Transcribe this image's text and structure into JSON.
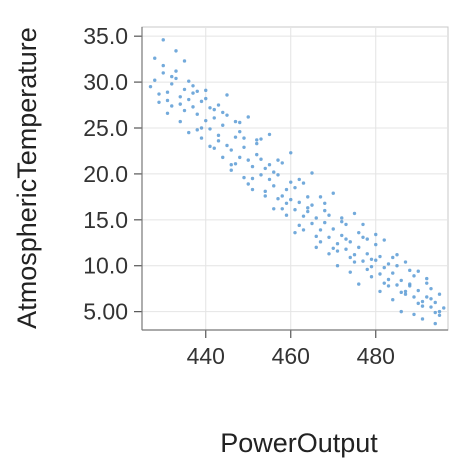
{
  "chart_data": {
    "type": "scatter",
    "title": "",
    "xlabel": "PowerOutput",
    "ylabel": "AtmosphericTemperature",
    "xlim": [
      425,
      497
    ],
    "ylim": [
      3.0,
      36.0
    ],
    "xticks": [
      440,
      460,
      480
    ],
    "xtick_labels": [
      "440",
      "460",
      "480"
    ],
    "yticks": [
      5.0,
      10.0,
      15.0,
      20.0,
      25.0,
      30.0,
      35.0
    ],
    "ytick_labels": [
      "5.00",
      "10.0",
      "15.0",
      "20.0",
      "25.0",
      "30.0",
      "35.0"
    ],
    "grid": true,
    "legend": "none",
    "point_color": "#5b9bd5",
    "series": [
      {
        "x": [
          427,
          428,
          429,
          430,
          431,
          432,
          433,
          434,
          435,
          436,
          437,
          438,
          439,
          440,
          441,
          442,
          443,
          444,
          445,
          446,
          447,
          448,
          449,
          450,
          451,
          452,
          453,
          454,
          455,
          456,
          457,
          458,
          459,
          460,
          461,
          462,
          463,
          464,
          465,
          466,
          467,
          468,
          469,
          470,
          471,
          472,
          473,
          474,
          475,
          476,
          477,
          478,
          479,
          480,
          481,
          482,
          483,
          484,
          485,
          486,
          487,
          488,
          489,
          490,
          491,
          492,
          493,
          494,
          495,
          496,
          429,
          431,
          433,
          435,
          437,
          439,
          441,
          443,
          445,
          447,
          449,
          451,
          453,
          455,
          457,
          459,
          461,
          463,
          465,
          467,
          469,
          471,
          473,
          475,
          477,
          479,
          481,
          483,
          485,
          487,
          489,
          491,
          493,
          495,
          430,
          432,
          434,
          436,
          438,
          440,
          442,
          444,
          446,
          448,
          450,
          452,
          454,
          456,
          458,
          460,
          462,
          464,
          466,
          468,
          470,
          472,
          474,
          476,
          478,
          480,
          482,
          484,
          486,
          488,
          490,
          492,
          494,
          428,
          433,
          438,
          443,
          448,
          453,
          458,
          463,
          468,
          473,
          478,
          483,
          488,
          493,
          431,
          436,
          441,
          446,
          451,
          456,
          461,
          466,
          471,
          476,
          481,
          486,
          491,
          434,
          439,
          444,
          449,
          454,
          459,
          464,
          469,
          474,
          479,
          484,
          489,
          494,
          432,
          437,
          442,
          447,
          452,
          457,
          462,
          467,
          472,
          477,
          482,
          487,
          492,
          430,
          440,
          450,
          460,
          470,
          480,
          490,
          435,
          445,
          455,
          465,
          475,
          485,
          495
        ],
        "y": [
          29.5,
          30.2,
          28.7,
          31.0,
          28.9,
          29.8,
          30.4,
          27.6,
          29.2,
          28.1,
          27.3,
          26.5,
          27.9,
          25.8,
          24.9,
          26.1,
          24.2,
          25.3,
          23.1,
          22.6,
          24.0,
          21.8,
          22.9,
          21.5,
          20.8,
          22.1,
          19.9,
          20.6,
          19.4,
          18.7,
          19.9,
          17.6,
          18.3,
          17.2,
          16.1,
          16.9,
          15.4,
          16.3,
          14.6,
          15.2,
          13.9,
          14.7,
          13.1,
          14.0,
          12.4,
          13.3,
          11.8,
          12.6,
          11.2,
          12.0,
          10.5,
          11.3,
          9.9,
          10.6,
          9.1,
          9.8,
          8.5,
          9.2,
          7.9,
          8.4,
          7.2,
          7.8,
          6.6,
          7.3,
          6.1,
          6.6,
          5.5,
          6.0,
          5.0,
          5.4,
          27.8,
          28.0,
          31.2,
          26.9,
          29.6,
          25.0,
          27.2,
          23.6,
          26.4,
          21.1,
          23.9,
          19.5,
          21.6,
          21.0,
          17.3,
          16.8,
          18.5,
          13.9,
          16.6,
          12.6,
          15.5,
          11.6,
          12.9,
          10.4,
          13.1,
          8.8,
          11.0,
          7.8,
          10.0,
          6.9,
          8.9,
          5.6,
          7.5,
          4.6,
          31.8,
          27.4,
          28.4,
          30.1,
          24.8,
          28.2,
          22.8,
          26.7,
          20.4,
          24.6,
          18.9,
          23.3,
          18.1,
          20.2,
          16.2,
          19.1,
          14.4,
          17.5,
          13.2,
          16.0,
          11.9,
          14.8,
          10.9,
          13.6,
          9.6,
          12.3,
          8.1,
          10.9,
          7.1,
          9.5,
          5.9,
          8.1,
          4.9,
          32.6,
          33.4,
          29.0,
          27.5,
          25.6,
          23.8,
          21.2,
          19.0,
          16.8,
          14.5,
          12.9,
          10.2,
          8.0,
          6.4,
          26.6,
          24.5,
          23.0,
          21.0,
          18.3,
          16.2,
          13.6,
          12.0,
          10.0,
          8.0,
          7.2,
          5.0,
          4.2,
          25.7,
          23.9,
          21.8,
          19.6,
          17.6,
          15.5,
          15.9,
          11.3,
          9.3,
          10.7,
          6.3,
          4.7,
          3.7,
          30.6,
          28.8,
          27.0,
          25.7,
          23.7,
          21.5,
          19.4,
          17.5,
          15.2,
          14.5,
          12.8,
          10.4,
          8.6,
          34.6,
          29.1,
          26.2,
          22.3,
          17.9,
          13.4,
          9.4,
          32.3,
          28.6,
          24.3,
          20.1,
          15.7,
          11.2,
          6.9
        ]
      }
    ]
  }
}
